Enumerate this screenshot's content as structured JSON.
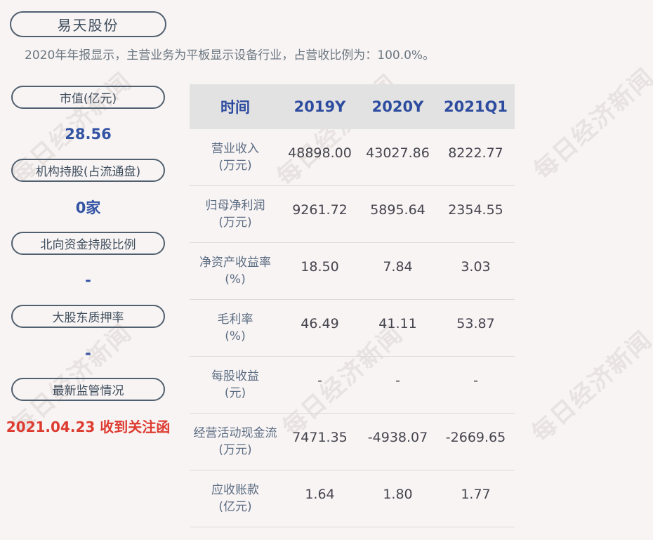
{
  "card": {
    "title": "易天股份",
    "subtitle": "2020年年报显示，主营业务为平板显示设备行业，占营收比例为：100.0%。"
  },
  "watermark": {
    "text": "每日经济新闻"
  },
  "sidebar": {
    "items": [
      {
        "label": "市值(亿元)",
        "value": "28.56",
        "style": "blue"
      },
      {
        "label": "机构持股(占流通盘)",
        "value": "0家",
        "style": "blue"
      },
      {
        "label": "北向资金持股比例",
        "value": "-",
        "style": "blue"
      },
      {
        "label": "大股东质押率",
        "value": "-",
        "style": "blue"
      },
      {
        "label": "最新监管情况",
        "value": "2021.04.23 收到关注函",
        "style": "red"
      }
    ]
  },
  "table": {
    "columns": [
      "时间",
      "2019Y",
      "2020Y",
      "2021Q1"
    ],
    "rows": [
      {
        "label": "营业收入",
        "unit": "(万元)",
        "values": [
          "48898.00",
          "43027.86",
          "8222.77"
        ]
      },
      {
        "label": "归母净利润",
        "unit": "(万元)",
        "values": [
          "9261.72",
          "5895.64",
          "2354.55"
        ]
      },
      {
        "label": "净资产收益率",
        "unit": "(%)",
        "values": [
          "18.50",
          "7.84",
          "3.03"
        ]
      },
      {
        "label": "毛利率",
        "unit": "(%)",
        "values": [
          "46.49",
          "41.11",
          "53.87"
        ]
      },
      {
        "label": "每股收益",
        "unit": "(元)",
        "values": [
          "-",
          "-",
          "-"
        ]
      },
      {
        "label": "经营活动现金流",
        "unit": "(万元)",
        "values": [
          "7471.35",
          "-4938.07",
          "-2669.65"
        ]
      },
      {
        "label": "应收账款",
        "unit": "(亿元)",
        "values": [
          "1.64",
          "1.80",
          "1.77"
        ]
      }
    ]
  },
  "colors": {
    "background": "#f8f4f4",
    "accent_blue": "#3353a3",
    "alert_red": "#dd3b30",
    "header_blue": "#2d4c9f",
    "pill_border": "#51606f",
    "label_slate": "#5b6c82",
    "number_gray": "#45454e",
    "header_band": "#e3e2e2",
    "watermark": "#e8e2e1"
  },
  "chart_data": {
    "type": "table",
    "title": "易天股份",
    "columns": [
      "时间",
      "2019Y",
      "2020Y",
      "2021Q1"
    ],
    "rows": [
      [
        "营业收入(万元)",
        "48898.00",
        "43027.86",
        "8222.77"
      ],
      [
        "归母净利润(万元)",
        "9261.72",
        "5895.64",
        "2354.55"
      ],
      [
        "净资产收益率(%)",
        "18.50",
        "7.84",
        "3.03"
      ],
      [
        "毛利率(%)",
        "46.49",
        "41.11",
        "53.87"
      ],
      [
        "每股收益(元)",
        "-",
        "-",
        "-"
      ],
      [
        "经营活动现金流(万元)",
        "7471.35",
        "-4938.07",
        "-2669.65"
      ],
      [
        "应收账款(亿元)",
        "1.64",
        "1.80",
        "1.77"
      ]
    ],
    "key_values": [
      [
        "市值(亿元)",
        "28.56"
      ],
      [
        "机构持股(占流通盘)",
        "0家"
      ],
      [
        "北向资金持股比例",
        "-"
      ],
      [
        "大股东质押率",
        "-"
      ],
      [
        "最新监管情况",
        "2021.04.23 收到关注函"
      ]
    ]
  }
}
